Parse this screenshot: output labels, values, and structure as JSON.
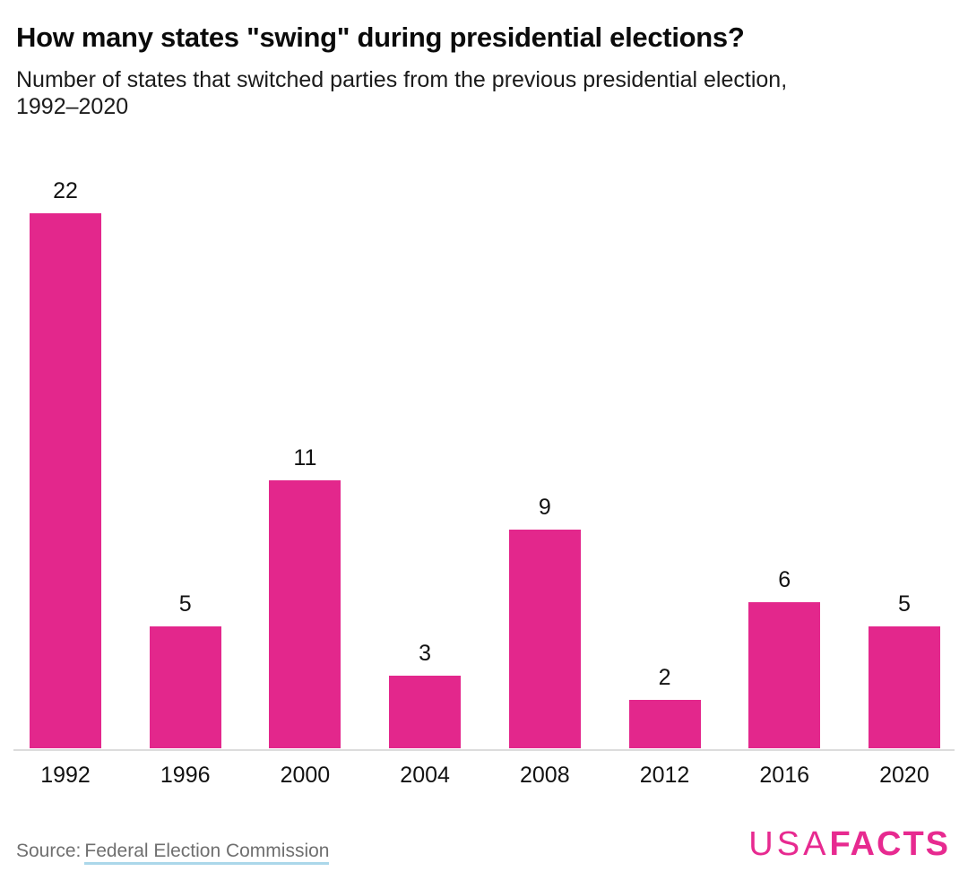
{
  "page": {
    "title": "How many states \"swing\" during presidential elections?",
    "subtitle_line1": "Number of states that switched parties from the previous presidential election,",
    "subtitle_line2": "1992–2020",
    "source_prefix": "Source:",
    "source_link": "Federal Election Commission",
    "logo_usa": "USA",
    "logo_facts": "FACTS"
  },
  "colors": {
    "bar": "#e3278c",
    "logo": "#e72a90",
    "axis_line": "#dcdcdc",
    "source_text": "#6f6f6f",
    "link_underline": "#abd7ea"
  },
  "chart_data": {
    "type": "bar",
    "title": "How many states \"swing\" during presidential elections?",
    "subtitle": "Number of states that switched parties from the previous presidential election, 1992–2020",
    "categories": [
      "1992",
      "1996",
      "2000",
      "2004",
      "2008",
      "2012",
      "2016",
      "2020"
    ],
    "values": [
      22,
      5,
      11,
      3,
      9,
      2,
      6,
      5
    ],
    "xlabel": "",
    "ylabel": "",
    "ylim": [
      0,
      22
    ],
    "grid": false,
    "legend": false,
    "data_labels": true,
    "bar_color": "#e3278c"
  }
}
